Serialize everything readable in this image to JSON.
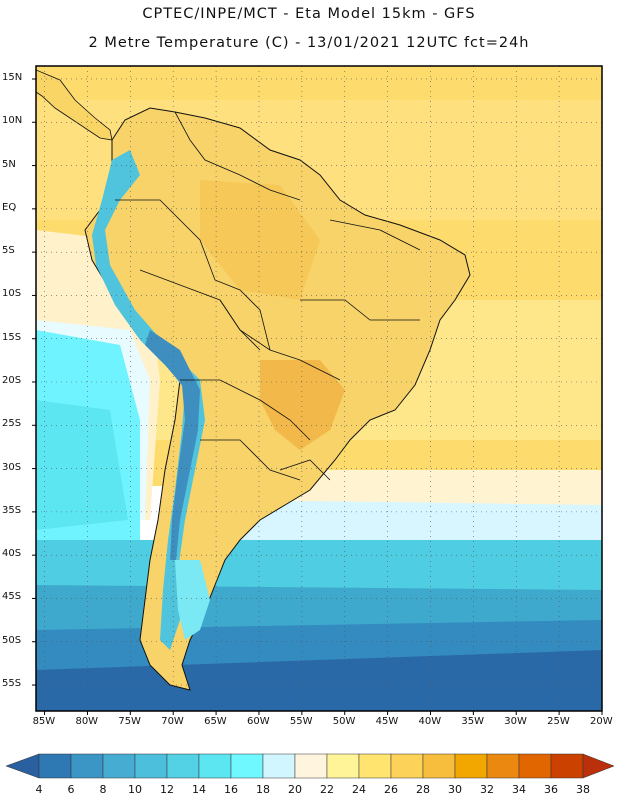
{
  "header": {
    "line1": "CPTEC/INPE/MCT -  Eta Model 15km - GFS",
    "line2": "2 Metre Temperature (C) - 13/01/2021 12UTC fct=24h"
  },
  "axes": {
    "lat_labels": [
      "15N",
      "10N",
      "5N",
      "EQ",
      "5S",
      "10S",
      "15S",
      "20S",
      "25S",
      "30S",
      "35S",
      "40S",
      "45S",
      "50S",
      "55S"
    ],
    "lon_labels": [
      "85W",
      "80W",
      "75W",
      "70W",
      "65W",
      "60W",
      "55W",
      "50W",
      "45W",
      "40W",
      "35W",
      "30W",
      "25W",
      "20W"
    ],
    "lat_range": [
      -58,
      16.5
    ],
    "lon_range": [
      -86,
      -20
    ],
    "grid": true
  },
  "colorbar": {
    "labels": [
      "4",
      "6",
      "8",
      "10",
      "12",
      "14",
      "16",
      "18",
      "20",
      "22",
      "24",
      "26",
      "28",
      "30",
      "32",
      "34",
      "36",
      "38"
    ],
    "colors": [
      "#2a5fa0",
      "#2e79b4",
      "#3b96c6",
      "#46acd2",
      "#4cbfdc",
      "#53d2e6",
      "#5ce6f2",
      "#6ff8ff",
      "#d2f6ff",
      "#fff5df",
      "#fff598",
      "#ffe470",
      "#fdd259",
      "#f7be3d",
      "#f2a600",
      "#eb880f",
      "#e16600",
      "#cb4200",
      "#b9300a"
    ]
  },
  "land_color": "#f7d36a",
  "ocean_color": "#ffe878"
}
